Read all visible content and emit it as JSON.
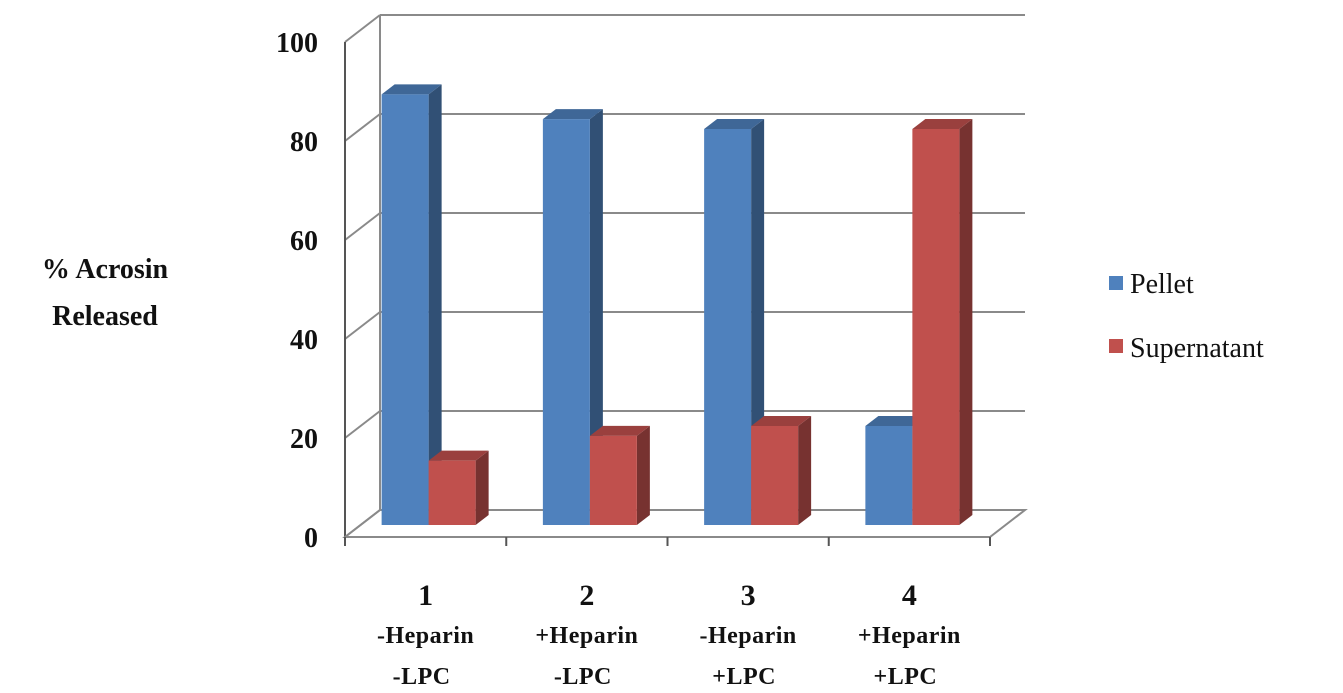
{
  "chart_data": {
    "type": "bar",
    "style": "3d-clustered-column",
    "ylabel": [
      "% Acrosin",
      "Released"
    ],
    "ylim": [
      0,
      100
    ],
    "yticks": [
      0,
      20,
      40,
      60,
      80,
      100
    ],
    "grid": true,
    "legend_position": "right",
    "categories": [
      {
        "num": "1",
        "line1": "-Heparin",
        "line2": "-LPC"
      },
      {
        "num": "2",
        "line1": "+Heparin",
        "line2": "-LPC"
      },
      {
        "num": "3",
        "line1": "-Heparin",
        "line2": "+LPC"
      },
      {
        "num": "4",
        "line1": "+Heparin",
        "line2": "+LPC"
      }
    ],
    "series": [
      {
        "name": "Pellet",
        "color": "#4f81bd",
        "values": [
          87,
          82,
          80,
          20
        ]
      },
      {
        "name": "Supernatant",
        "color": "#c0504d",
        "values": [
          13,
          18,
          20,
          80
        ]
      }
    ]
  }
}
